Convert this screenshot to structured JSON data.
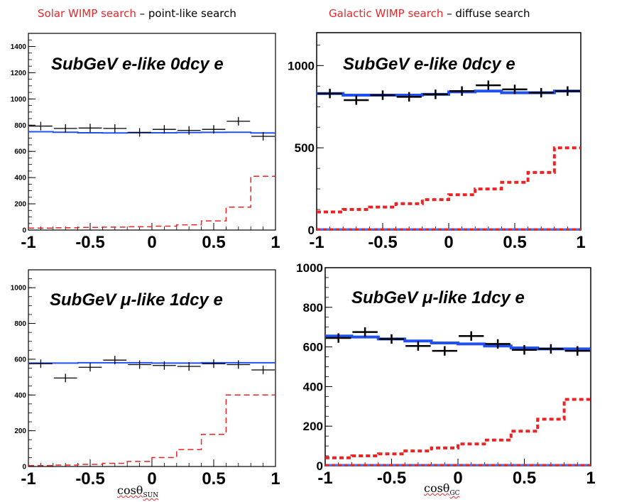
{
  "headings": {
    "left": {
      "colored": "Solar WIMP search",
      "rest": " – point-like search"
    },
    "right": {
      "colored": "Galactic WIMP search",
      "rest": " – diffuse search"
    }
  },
  "xlabels": {
    "left": {
      "main": "cosθ",
      "sub": "SUN"
    },
    "right": {
      "main": "cosθ",
      "sub": "GC"
    }
  },
  "colors": {
    "data": "#000000",
    "mc": "#2050f0",
    "signal": "#ee2222",
    "signal_base": "#4070ff"
  },
  "chart_data": [
    {
      "type": "histogram",
      "title": "SubGeV e-like 0dcy e",
      "xlim": [
        -1,
        1
      ],
      "ylim": [
        0,
        1500
      ],
      "xticks": [
        "-1",
        "-0.5",
        "0",
        "0.5",
        "1"
      ],
      "xtick_values": [
        -1,
        -0.5,
        0,
        0.5,
        1
      ],
      "yticks": [
        "0",
        "200",
        "400",
        "600",
        "800",
        "1000",
        "1200",
        "1400"
      ],
      "ytick_values": [
        0,
        200,
        400,
        600,
        800,
        1000,
        1200,
        1400
      ],
      "bins": [
        -1,
        -0.8,
        -0.6,
        -0.4,
        -0.2,
        0,
        0.2,
        0.4,
        0.6,
        0.8,
        1
      ],
      "data": [
        793,
        775,
        778,
        775,
        745,
        768,
        760,
        768,
        830,
        715
      ],
      "mc": [
        750,
        746,
        742,
        740,
        742,
        742,
        744,
        745,
        746,
        740
      ],
      "signal": [
        15,
        18,
        20,
        22,
        25,
        30,
        40,
        70,
        175,
        410
      ]
    },
    {
      "type": "histogram",
      "title": "SubGeV e-like 0dcy e",
      "xlim": [
        -1,
        1
      ],
      "ylim": [
        0,
        1200
      ],
      "xticks": [
        "-1",
        "-0.5",
        "0",
        "0.5",
        "1"
      ],
      "xtick_values": [
        -1,
        -0.5,
        0,
        0.5,
        1
      ],
      "yticks": [
        "0",
        "500",
        "1000"
      ],
      "ytick_values": [
        0,
        500,
        1000
      ],
      "bins": [
        -1,
        -0.8,
        -0.6,
        -0.4,
        -0.2,
        0,
        0.2,
        0.4,
        0.6,
        0.8,
        1
      ],
      "data": [
        830,
        790,
        820,
        810,
        825,
        845,
        880,
        855,
        835,
        845
      ],
      "mc": [
        830,
        820,
        820,
        820,
        825,
        840,
        845,
        835,
        835,
        845
      ],
      "signal": [
        110,
        125,
        140,
        160,
        185,
        215,
        250,
        290,
        350,
        500
      ]
    },
    {
      "type": "histogram",
      "title": "SubGeV μ-like 1dcy e",
      "xlim": [
        -1,
        1
      ],
      "ylim": [
        0,
        1100
      ],
      "xticks": [
        "-1",
        "-0.5",
        "0",
        "0.5",
        "1"
      ],
      "xtick_values": [
        -1,
        -0.5,
        0,
        0.5,
        1
      ],
      "yticks": [
        "0",
        "200",
        "400",
        "600",
        "800",
        "1000"
      ],
      "ytick_values": [
        0,
        200,
        400,
        600,
        800,
        1000
      ],
      "bins": [
        -1,
        -0.8,
        -0.6,
        -0.4,
        -0.2,
        0,
        0.2,
        0.4,
        0.6,
        0.8,
        1
      ],
      "data": [
        575,
        495,
        555,
        595,
        570,
        565,
        560,
        575,
        570,
        540
      ],
      "mc": [
        578,
        578,
        580,
        580,
        580,
        578,
        578,
        580,
        580,
        580
      ],
      "signal": [
        5,
        8,
        12,
        18,
        28,
        50,
        95,
        180,
        400,
        400
      ]
    },
    {
      "type": "histogram",
      "title": "SubGeV μ-like 1dcy e",
      "xlim": [
        -1,
        1
      ],
      "ylim": [
        0,
        1000
      ],
      "xticks": [
        "-1",
        "-0.5",
        "0",
        "0.5",
        "1"
      ],
      "xtick_values": [
        -1,
        -0.5,
        0,
        0.5,
        1
      ],
      "yticks": [
        "0",
        "200",
        "400",
        "600",
        "800",
        "1000"
      ],
      "ytick_values": [
        0,
        200,
        400,
        600,
        800,
        1000
      ],
      "bins": [
        -1,
        -0.8,
        -0.6,
        -0.4,
        -0.2,
        0,
        0.2,
        0.4,
        0.6,
        0.8,
        1
      ],
      "data": [
        645,
        675,
        640,
        605,
        580,
        655,
        615,
        585,
        590,
        580
      ],
      "mc": [
        655,
        650,
        640,
        630,
        620,
        615,
        605,
        595,
        590,
        590
      ],
      "signal": [
        40,
        50,
        60,
        75,
        90,
        110,
        130,
        175,
        235,
        335
      ]
    }
  ]
}
